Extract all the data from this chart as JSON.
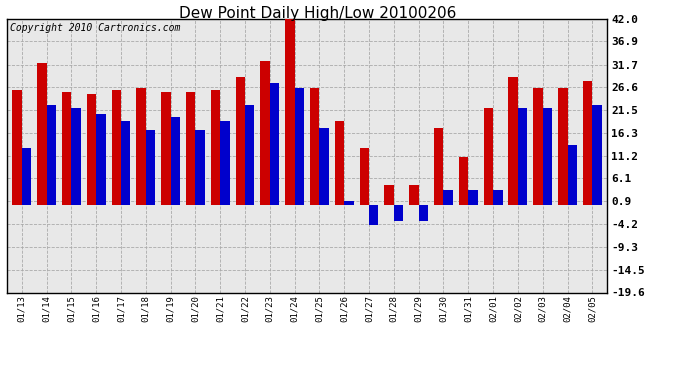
{
  "title": "Dew Point Daily High/Low 20100206",
  "copyright": "Copyright 2010 Cartronics.com",
  "dates": [
    "01/13",
    "01/14",
    "01/15",
    "01/16",
    "01/17",
    "01/18",
    "01/19",
    "01/20",
    "01/21",
    "01/22",
    "01/23",
    "01/24",
    "01/25",
    "01/26",
    "01/27",
    "01/28",
    "01/29",
    "01/30",
    "01/31",
    "02/01",
    "02/02",
    "02/03",
    "02/04",
    "02/05"
  ],
  "highs": [
    26.0,
    32.0,
    25.5,
    25.0,
    26.0,
    26.5,
    25.5,
    25.5,
    26.0,
    29.0,
    32.5,
    42.5,
    26.5,
    19.0,
    13.0,
    4.5,
    4.5,
    17.5,
    11.0,
    22.0,
    29.0,
    26.5,
    26.5,
    28.0
  ],
  "lows": [
    13.0,
    22.5,
    22.0,
    20.5,
    19.0,
    17.0,
    20.0,
    17.0,
    19.0,
    22.5,
    27.5,
    26.5,
    17.5,
    1.0,
    -4.5,
    -3.5,
    -3.5,
    3.5,
    3.5,
    3.5,
    22.0,
    22.0,
    13.5,
    22.5
  ],
  "ylim": [
    -19.6,
    42.0
  ],
  "yticks": [
    -19.6,
    -14.5,
    -9.3,
    -4.2,
    0.9,
    6.1,
    11.2,
    16.3,
    21.5,
    26.6,
    31.7,
    36.9,
    42.0
  ],
  "ytick_labels": [
    "-19.6",
    "-14.5",
    "-9.3",
    "-4.2",
    "0.9",
    "6.1",
    "11.2",
    "16.3",
    "21.5",
    "26.6",
    "31.7",
    "36.9",
    "42.0"
  ],
  "high_color": "#cc0000",
  "low_color": "#0000cc",
  "bg_color": "#ffffff",
  "plot_bg_color": "#e8e8e8",
  "grid_color": "#aaaaaa",
  "bar_width": 0.38,
  "title_fontsize": 11,
  "copyright_fontsize": 7,
  "tick_fontsize": 8,
  "xtick_fontsize": 6.5
}
